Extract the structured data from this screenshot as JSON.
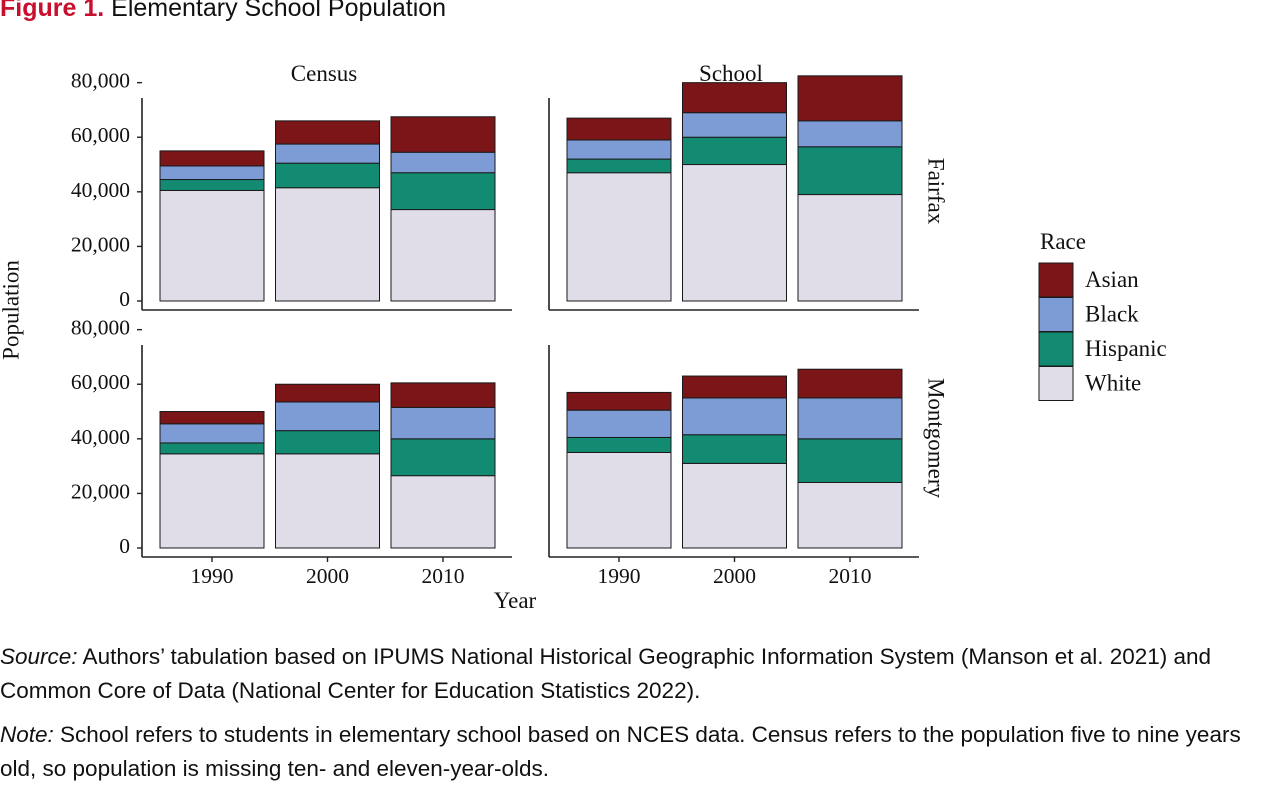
{
  "figure": {
    "label": "Figure 1.",
    "title": "Elementary School Population"
  },
  "chart_data": {
    "type": "bar",
    "stacked": true,
    "facet_columns": [
      "Census",
      "School"
    ],
    "facet_rows": [
      "Fairfax",
      "Montgomery"
    ],
    "categories": [
      "1990",
      "2000",
      "2010"
    ],
    "xlabel": "Year",
    "ylabel": "Population",
    "ylim": [
      0,
      85000
    ],
    "yticks": [
      0,
      20000,
      40000,
      60000,
      80000
    ],
    "ytick_labels": [
      "0",
      "20,000",
      "40,000",
      "60,000",
      "80,000"
    ],
    "grid": false,
    "legend": {
      "title": "Race",
      "position": "right",
      "entries": [
        {
          "name": "Asian",
          "color": "#7b1517"
        },
        {
          "name": "Black",
          "color": "#7d9bd5"
        },
        {
          "name": "Hispanic",
          "color": "#138a72"
        },
        {
          "name": "White",
          "color": "#e0dce8"
        }
      ]
    },
    "stack_order": [
      "White",
      "Hispanic",
      "Black",
      "Asian"
    ],
    "panels": [
      {
        "column": "Census",
        "row": "Fairfax",
        "series": [
          {
            "name": "White",
            "values": [
              40500,
              41500,
              33500
            ]
          },
          {
            "name": "Hispanic",
            "values": [
              4000,
              9000,
              13500
            ]
          },
          {
            "name": "Black",
            "values": [
              5000,
              7000,
              7500
            ]
          },
          {
            "name": "Asian",
            "values": [
              5500,
              8500,
              13000
            ]
          }
        ]
      },
      {
        "column": "School",
        "row": "Fairfax",
        "series": [
          {
            "name": "White",
            "values": [
              47000,
              50000,
              39000
            ]
          },
          {
            "name": "Hispanic",
            "values": [
              5000,
              10000,
              17500
            ]
          },
          {
            "name": "Black",
            "values": [
              7000,
              9000,
              9500
            ]
          },
          {
            "name": "Asian",
            "values": [
              8000,
              11000,
              16500
            ]
          }
        ]
      },
      {
        "column": "Census",
        "row": "Montgomery",
        "series": [
          {
            "name": "White",
            "values": [
              34500,
              34500,
              26500
            ]
          },
          {
            "name": "Hispanic",
            "values": [
              4000,
              8500,
              13500
            ]
          },
          {
            "name": "Black",
            "values": [
              7000,
              10500,
              11500
            ]
          },
          {
            "name": "Asian",
            "values": [
              4500,
              6500,
              9000
            ]
          }
        ]
      },
      {
        "column": "School",
        "row": "Montgomery",
        "series": [
          {
            "name": "White",
            "values": [
              35000,
              31000,
              24000
            ]
          },
          {
            "name": "Hispanic",
            "values": [
              5500,
              10500,
              16000
            ]
          },
          {
            "name": "Black",
            "values": [
              10000,
              13500,
              15000
            ]
          },
          {
            "name": "Asian",
            "values": [
              6500,
              8000,
              10500
            ]
          }
        ]
      }
    ]
  },
  "source": {
    "lead": "Source:",
    "text": " Authors’ tabulation based on IPUMS National Historical Geographic Information System (Manson et al. 2021) and Common Core of Data (National Center for Education Statistics 2022)."
  },
  "note": {
    "lead": "Note:",
    "text": " School refers to students in elementary school based on NCES data. Census refers to the population five to nine years old, so population is missing ten- and eleven-year-olds."
  }
}
